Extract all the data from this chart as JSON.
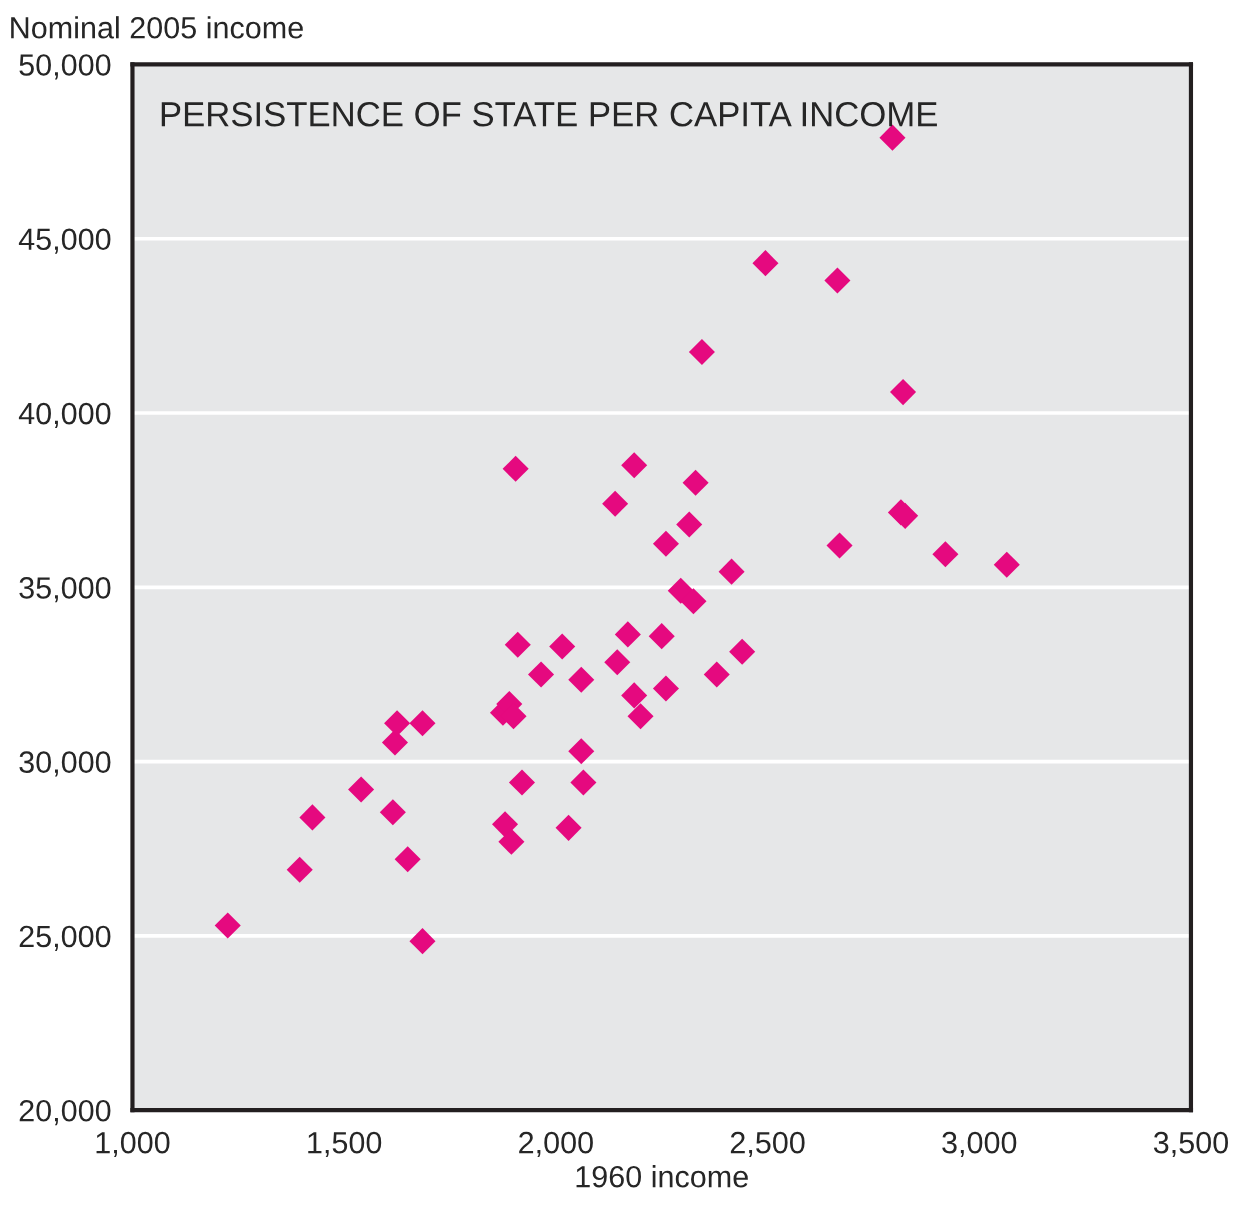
{
  "chart_data": {
    "type": "scatter",
    "title": "PERSISTENCE OF STATE PER CAPITA INCOME",
    "xlabel": "1960 income",
    "ylabel": "Nominal 2005 income",
    "series": [
      {
        "color": "#e5097f",
        "x": [
          1225,
          1395,
          1425,
          1540,
          1615,
          1620,
          1625,
          1650,
          1685,
          1685,
          1875,
          1890,
          1900,
          1880,
          1895,
          1920,
          1910,
          1905,
          1965,
          2015,
          2030,
          2060,
          2060,
          2065,
          2140,
          2145,
          2170,
          2185,
          2185,
          2200,
          2250,
          2260,
          2260,
          2295,
          2315,
          2325,
          2330,
          2345,
          2380,
          2415,
          2440,
          2495,
          2665,
          2670,
          2795,
          2820,
          2815,
          2825,
          2920,
          3065
        ],
        "values": [
          25300,
          26900,
          28400,
          29200,
          28550,
          30550,
          31100,
          27200,
          31100,
          24850,
          31400,
          31650,
          31300,
          28200,
          27700,
          29400,
          33350,
          38400,
          32500,
          33300,
          28100,
          32350,
          30300,
          29400,
          37400,
          32850,
          33650,
          38500,
          31900,
          31300,
          33600,
          36250,
          32100,
          34900,
          36800,
          34600,
          38000,
          41750,
          32500,
          35450,
          33150,
          44300,
          43800,
          36200,
          47900,
          40600,
          37150,
          37050,
          35950,
          35650
        ]
      }
    ],
    "xlim": [
      1000,
      3500
    ],
    "xticks": [
      {
        "value": 1000,
        "label": "1,000"
      },
      {
        "value": 1500,
        "label": "1,500"
      },
      {
        "value": 2000,
        "label": "2,000"
      },
      {
        "value": 2500,
        "label": "2,500"
      },
      {
        "value": 3000,
        "label": "3,000"
      },
      {
        "value": 3500,
        "label": "3,500"
      }
    ],
    "ylim": [
      20000,
      50000
    ],
    "yticks": [
      {
        "value": 20000,
        "label": "20,000"
      },
      {
        "value": 25000,
        "label": "25,000"
      },
      {
        "value": 30000,
        "label": "30,000"
      },
      {
        "value": 35000,
        "label": "35,000"
      },
      {
        "value": 40000,
        "label": "40,000"
      },
      {
        "value": 45000,
        "label": "45,000"
      },
      {
        "value": 50000,
        "label": "50,000"
      }
    ],
    "grid": "y",
    "marker": "diamond"
  }
}
